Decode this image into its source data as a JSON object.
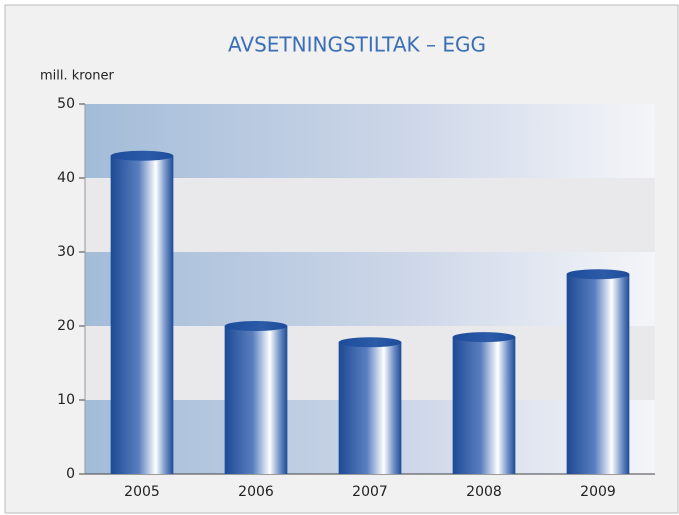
{
  "chart_data": {
    "type": "bar",
    "title": "AVSETNINGSTILTAK – EGG",
    "y_label": "mill. kroner",
    "categories": [
      "2005",
      "2006",
      "2007",
      "2008",
      "2009"
    ],
    "values": [
      43,
      20,
      17.8,
      18.5,
      27
    ],
    "color": "#1f4f9a",
    "ylim": [
      0,
      50
    ],
    "yticks": [
      0,
      10,
      20,
      30,
      40,
      50
    ],
    "grid": true
  }
}
